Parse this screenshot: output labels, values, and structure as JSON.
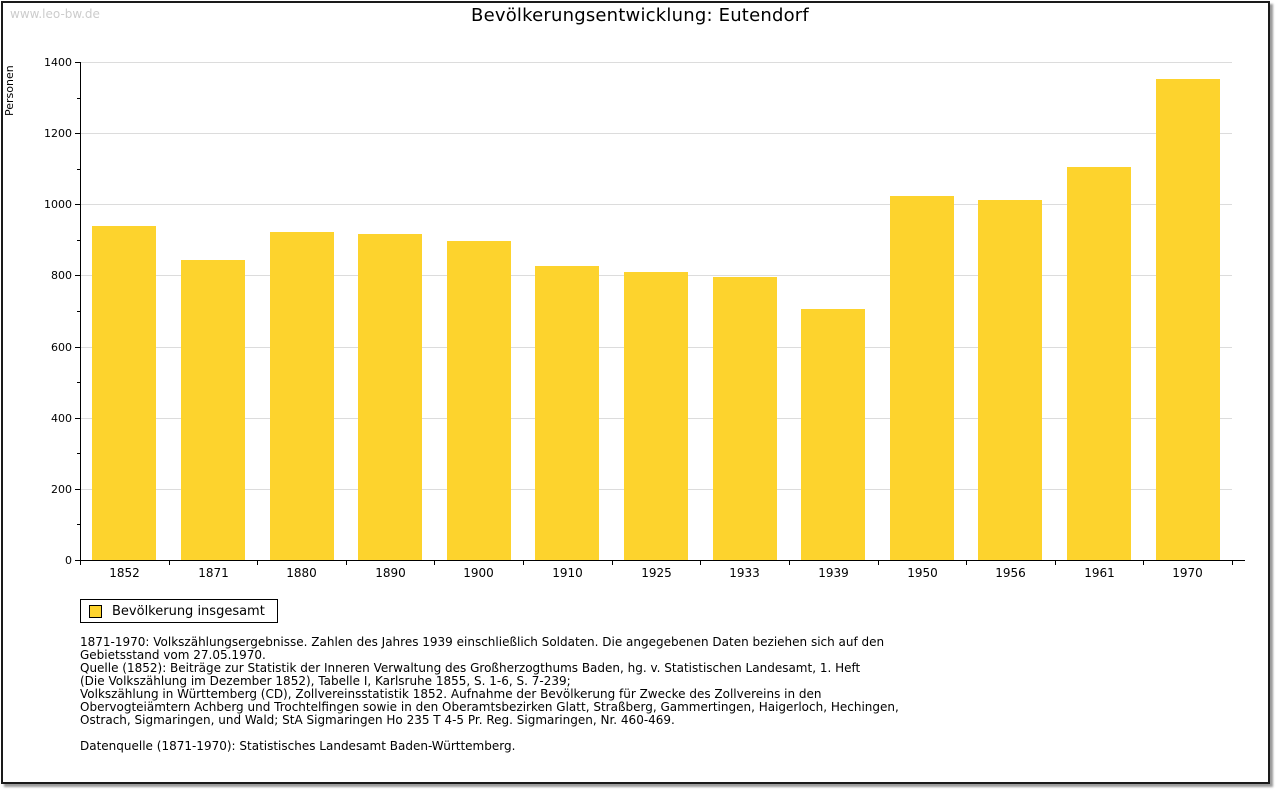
{
  "page": {
    "watermark": "www.leo-bw.de"
  },
  "chart_data": {
    "type": "bar",
    "title": "Bevölkerungsentwicklung: Eutendorf",
    "ylabel": "Personen",
    "xlabel": "",
    "categories": [
      "1852",
      "1871",
      "1880",
      "1890",
      "1900",
      "1910",
      "1925",
      "1933",
      "1939",
      "1950",
      "1956",
      "1961",
      "1970"
    ],
    "series": [
      {
        "name": "Bevölkerung insgesamt",
        "values": [
          940,
          844,
          923,
          916,
          897,
          827,
          810,
          796,
          706,
          1023,
          1012,
          1105,
          1353
        ]
      }
    ],
    "ylim": [
      0,
      1400
    ],
    "ytick_interval": 200,
    "yminor_tick_interval": 100,
    "grid": true,
    "gridline_color": "#dcdcdc",
    "bar_color": "#fdd32d",
    "legend_position": "bottom-left"
  },
  "legend": {
    "label": "Bevölkerung insgesamt"
  },
  "notes": {
    "lines": [
      "1871-1970: Volkszählungsergebnisse. Zahlen des Jahres 1939 einschließlich Soldaten. Die angegebenen Daten beziehen sich auf den",
      "Gebietsstand vom 27.05.1970.",
      "Quelle (1852): Beiträge zur Statistik der Inneren Verwaltung des Großherzogthums Baden, hg. v. Statistischen Landesamt, 1. Heft",
      "(Die Volkszählung im Dezember 1852), Tabelle I, Karlsruhe 1855, S. 1-6, S. 7-239;",
      "Volkszählung in Württemberg (CD), Zollvereinsstatistik 1852. Aufnahme der Bevölkerung für Zwecke des Zollvereins in den",
      "Obervogteiämtern Achberg und Trochtelfingen sowie in den Oberamtsbezirken Glatt, Straßberg, Gammertingen, Haigerloch, Hechingen,",
      "Ostrach, Sigmaringen, und Wald; StA Sigmaringen Ho 235 T 4-5 Pr. Reg. Sigmaringen, Nr. 460-469."
    ],
    "datasource": "Datenquelle (1871-1970): Statistisches Landesamt Baden-Württemberg."
  }
}
